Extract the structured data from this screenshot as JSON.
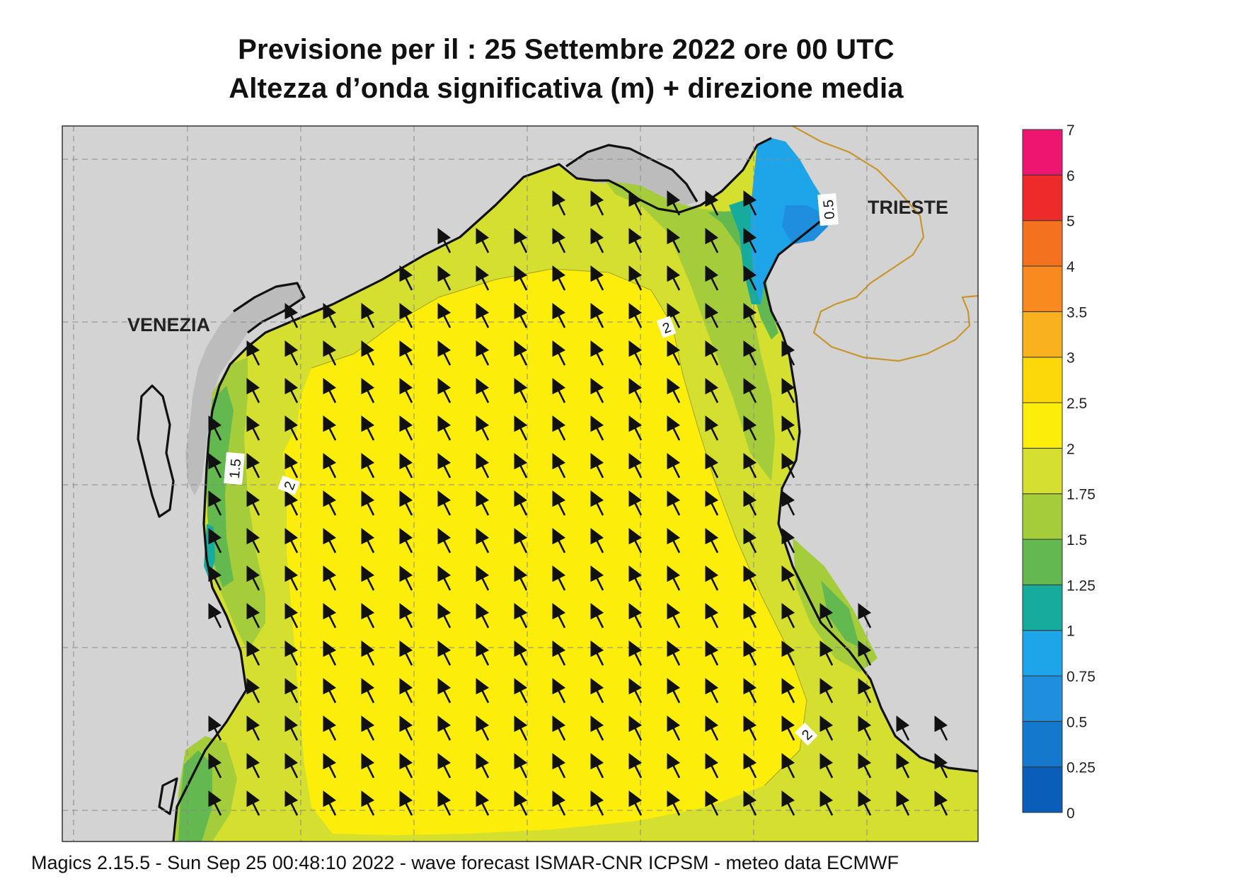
{
  "header": {
    "title_line1": "Previsione per il  :  25 Settembre 2022   ore 00 UTC",
    "title_line2": "Altezza d’onda significativa (m) + direzione media"
  },
  "map": {
    "place_labels": [
      "VENEZIA",
      "TRIESTE"
    ],
    "contour_labels": [
      "1.5",
      "2",
      "2",
      "2",
      "0.5"
    ],
    "arrow_direction": "north-northwest"
  },
  "legend": {
    "levels": [
      "0",
      "0.25",
      "0.5",
      "0.75",
      "1",
      "1.25",
      "1.5",
      "1.75",
      "2",
      "2.5",
      "3",
      "3.5",
      "4",
      "5",
      "6",
      "7"
    ],
    "colors": [
      "#0a5db8",
      "#1478cc",
      "#1f8fdd",
      "#1ea4e8",
      "#17ab9e",
      "#63b84f",
      "#a5cc3a",
      "#d4df2f",
      "#fcee0a",
      "#fcd80a",
      "#fab11e",
      "#f88a1f",
      "#f4711f",
      "#ef2a2a",
      "#ec1670"
    ]
  },
  "colors": {
    "land": "#d3d3d3",
    "land_dark": "#bcbcbc",
    "yellow": "#fcee0a",
    "lime": "#d4df2f",
    "green": "#a5cc3a",
    "mid_green": "#63b84f",
    "teal": "#17ab9e",
    "blue": "#1ea4e8",
    "dark_blue": "#1f8fdd",
    "border": "#c8952a"
  },
  "footer": {
    "text": "Magics 2.15.5 - Sun Sep 25 00:48:10 2022 - wave forecast  ISMAR-CNR  ICPSM - meteo data   ECMWF"
  }
}
